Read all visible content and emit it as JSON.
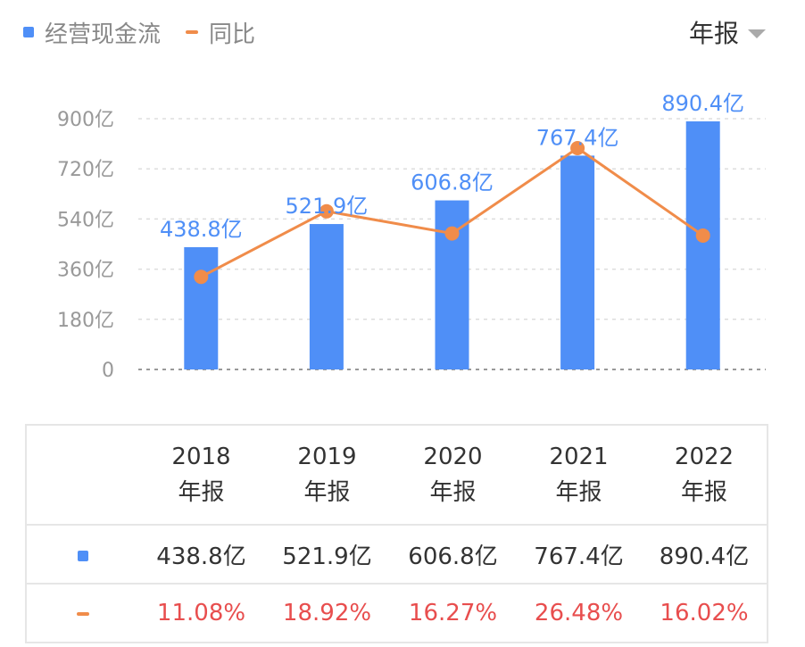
{
  "legend": {
    "bar_label": "经营现金流",
    "line_label": "同比"
  },
  "period_select": {
    "value": "年报"
  },
  "colors": {
    "bar": "#4f8ff7",
    "line": "#f08c4a",
    "pct_text": "#e84e4e",
    "grid": "#dddddd"
  },
  "chart_data": {
    "type": "bar",
    "categories": [
      "2018",
      "2019",
      "2020",
      "2021",
      "2022"
    ],
    "series": [
      {
        "name": "经营现金流",
        "type": "bar",
        "values": [
          438.8,
          521.9,
          606.8,
          767.4,
          890.4
        ],
        "labels": [
          "438.8亿",
          "521.9亿",
          "606.8亿",
          "767.4亿",
          "890.4亿"
        ]
      },
      {
        "name": "同比",
        "type": "line",
        "values": [
          11.08,
          18.92,
          16.27,
          26.48,
          16.02
        ]
      }
    ],
    "y_ticks": [
      "0",
      "180亿",
      "360亿",
      "540亿",
      "720亿",
      "900亿"
    ],
    "ylim": [
      0,
      900
    ],
    "grid": true
  },
  "table": {
    "columns": [
      {
        "year": "2018",
        "period": "年报",
        "value": "438.8亿",
        "yoy": "11.08%"
      },
      {
        "year": "2019",
        "period": "年报",
        "value": "521.9亿",
        "yoy": "18.92%"
      },
      {
        "year": "2020",
        "period": "年报",
        "value": "606.8亿",
        "yoy": "16.27%"
      },
      {
        "year": "2021",
        "period": "年报",
        "value": "767.4亿",
        "yoy": "26.48%"
      },
      {
        "year": "2022",
        "period": "年报",
        "value": "890.4亿",
        "yoy": "16.02%"
      }
    ]
  }
}
